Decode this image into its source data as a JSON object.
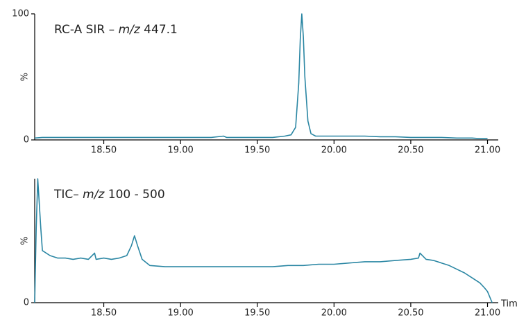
{
  "chart_data": [
    {
      "type": "line",
      "title_parts": [
        "RC-A SIR – ",
        "m/z",
        " 447.1"
      ],
      "title_italic": [
        1
      ],
      "y_label": "%",
      "x": [
        18.05,
        18.1,
        18.2,
        18.3,
        18.4,
        18.5,
        18.6,
        18.7,
        18.8,
        18.9,
        19.0,
        19.1,
        19.2,
        19.28,
        19.3,
        19.4,
        19.5,
        19.6,
        19.68,
        19.72,
        19.75,
        19.77,
        19.78,
        19.79,
        19.8,
        19.81,
        19.83,
        19.85,
        19.88,
        19.95,
        20.0,
        20.1,
        20.2,
        20.3,
        20.4,
        20.5,
        20.6,
        20.7,
        20.8,
        20.9,
        20.95,
        21.0
      ],
      "series": [
        {
          "color": "#2a86a3",
          "values": [
            1.5,
            2,
            2,
            2,
            2,
            2,
            2,
            2,
            2,
            2,
            2,
            2,
            2,
            3,
            2,
            2,
            2,
            2,
            3,
            4,
            10,
            45,
            80,
            100,
            82,
            50,
            15,
            5,
            3,
            3,
            3,
            3,
            3,
            2.5,
            2.5,
            2,
            2,
            2,
            1.5,
            1.5,
            1,
            1
          ]
        }
      ],
      "xlim": [
        18.05,
        21.07
      ],
      "ylim": [
        0,
        100
      ],
      "xticks": [
        {
          "value": 18.5,
          "label": "18.50"
        },
        {
          "value": 19.0,
          "label": "19.00"
        },
        {
          "value": 19.5,
          "label": "19.50"
        },
        {
          "value": 20.0,
          "label": "20.00"
        },
        {
          "value": 20.5,
          "label": "20.50"
        },
        {
          "value": 21.0,
          "label": "21.00"
        }
      ],
      "yticks": [
        0,
        100
      ]
    },
    {
      "type": "line",
      "title_parts": [
        "TIC– ",
        "m/z",
        " 100 - 500"
      ],
      "title_italic": [
        1
      ],
      "y_label": "%",
      "x_label": "Time",
      "x": [
        18.05,
        18.06,
        18.07,
        18.09,
        18.1,
        18.15,
        18.2,
        18.25,
        18.3,
        18.35,
        18.4,
        18.44,
        18.45,
        18.5,
        18.55,
        18.6,
        18.65,
        18.68,
        18.7,
        18.72,
        18.75,
        18.8,
        18.9,
        19.0,
        19.1,
        19.2,
        19.3,
        19.4,
        19.5,
        19.6,
        19.7,
        19.8,
        19.9,
        20.0,
        20.1,
        20.2,
        20.3,
        20.4,
        20.5,
        20.55,
        20.56,
        20.6,
        20.65,
        20.7,
        20.75,
        20.8,
        20.85,
        20.9,
        20.95,
        20.98,
        21.0,
        21.03
      ],
      "series": [
        {
          "color": "#2a86a3",
          "values": [
            0,
            60,
            100,
            60,
            42,
            38,
            36,
            36,
            35,
            36,
            35,
            40,
            35,
            36,
            35,
            36,
            38,
            46,
            54,
            46,
            35,
            30,
            29,
            29,
            29,
            29,
            29,
            29,
            29,
            29,
            30,
            30,
            31,
            31,
            32,
            33,
            33,
            34,
            35,
            36,
            40,
            35,
            34,
            32,
            30,
            27,
            24,
            20,
            16,
            12,
            9,
            0
          ]
        }
      ],
      "xlim": [
        18.05,
        21.07
      ],
      "ylim": [
        0,
        100
      ],
      "xticks": [
        {
          "value": 18.5,
          "label": "18.50"
        },
        {
          "value": 19.0,
          "label": "19.00"
        },
        {
          "value": 19.5,
          "label": "19.50"
        },
        {
          "value": 20.0,
          "label": "20.00"
        },
        {
          "value": 20.5,
          "label": "20.50"
        },
        {
          "value": 21.0,
          "label": "21.00"
        }
      ],
      "yticks": [
        0
      ]
    }
  ]
}
